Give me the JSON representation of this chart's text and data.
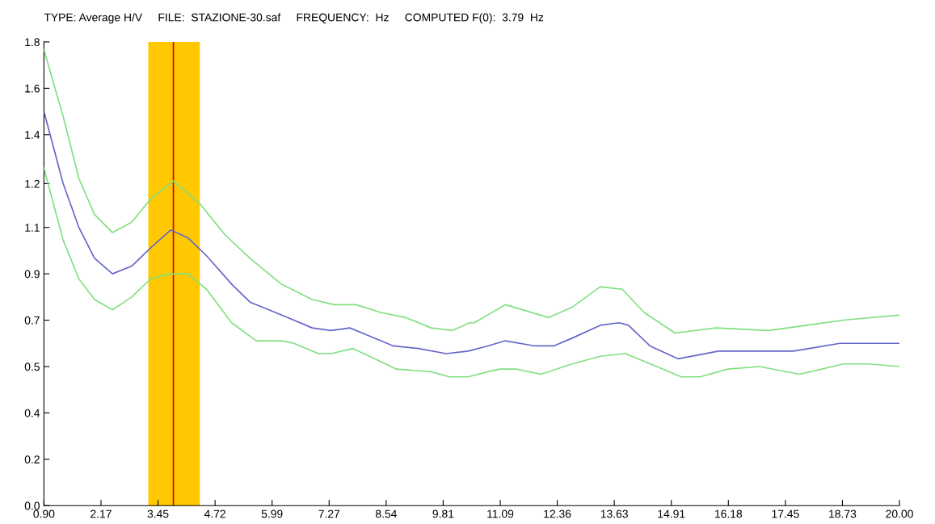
{
  "chart_data": {
    "type": "line",
    "title": "TYPE: Average H/V     FILE:  STAZIONE-30.saf     FREQUENCY:  Hz     COMPUTED F(0):  3.79  Hz",
    "series": [
      {
        "color": "#80e080",
        "x": [
          0.9,
          1.33,
          1.68,
          2.03,
          2.43,
          2.86,
          3.28,
          3.79,
          4.39,
          4.95,
          5.5,
          6.2,
          6.89,
          7.38,
          7.87,
          8.42,
          8.98,
          9.54,
          10.02,
          10.4,
          10.51,
          11.2,
          12.17,
          12.69,
          13.32,
          13.81,
          14.3,
          14.99,
          15.9,
          17.08,
          18.75,
          20.0
        ],
        "values": [
          1.77,
          1.51,
          1.27,
          1.13,
          1.06,
          1.1,
          1.19,
          1.26,
          1.17,
          1.05,
          0.96,
          0.86,
          0.8,
          0.78,
          0.78,
          0.75,
          0.73,
          0.69,
          0.68,
          0.71,
          0.71,
          0.78,
          0.73,
          0.77,
          0.85,
          0.84,
          0.75,
          0.67,
          0.69,
          0.68,
          0.72,
          0.74
        ]
      },
      {
        "color": "#6666cc",
        "x": [
          0.9,
          1.33,
          1.68,
          2.03,
          2.43,
          2.86,
          3.28,
          3.73,
          4.11,
          4.53,
          5.09,
          5.5,
          5.78,
          6.34,
          6.89,
          7.31,
          7.73,
          8.15,
          8.7,
          9.26,
          9.88,
          10.37,
          10.81,
          11.2,
          11.86,
          12.28,
          12.69,
          13.32,
          13.74,
          13.95,
          14.43,
          15.06,
          15.96,
          17.63,
          18.67,
          19.36,
          20.0
        ],
        "values": [
          1.53,
          1.25,
          1.08,
          0.96,
          0.9,
          0.93,
          1.0,
          1.07,
          1.04,
          0.97,
          0.86,
          0.79,
          0.77,
          0.73,
          0.69,
          0.68,
          0.69,
          0.66,
          0.62,
          0.61,
          0.59,
          0.6,
          0.62,
          0.64,
          0.62,
          0.62,
          0.65,
          0.7,
          0.71,
          0.7,
          0.62,
          0.57,
          0.6,
          0.6,
          0.63,
          0.63,
          0.63
        ]
      },
      {
        "color": "#80e080",
        "x": [
          0.9,
          1.33,
          1.68,
          2.03,
          2.43,
          2.86,
          3.28,
          3.7,
          4.11,
          4.53,
          5.09,
          5.64,
          6.2,
          6.48,
          7.03,
          7.31,
          7.8,
          8.29,
          8.77,
          9.54,
          9.95,
          10.37,
          10.81,
          11.09,
          11.44,
          12.0,
          12.69,
          13.32,
          13.88,
          14.3,
          15.13,
          15.55,
          16.17,
          16.87,
          17.77,
          18.75,
          19.3,
          20.0
        ],
        "values": [
          1.31,
          1.03,
          0.88,
          0.8,
          0.76,
          0.81,
          0.88,
          0.9,
          0.9,
          0.84,
          0.71,
          0.64,
          0.64,
          0.63,
          0.59,
          0.59,
          0.61,
          0.57,
          0.53,
          0.52,
          0.5,
          0.5,
          0.52,
          0.53,
          0.53,
          0.51,
          0.55,
          0.58,
          0.59,
          0.56,
          0.5,
          0.5,
          0.53,
          0.54,
          0.51,
          0.55,
          0.55,
          0.54
        ]
      }
    ],
    "xlim": [
      0.9,
      20.0
    ],
    "xticks": [
      {
        "value": 0.9,
        "label": "0.90"
      },
      {
        "value": 2.1733,
        "label": "2.17"
      },
      {
        "value": 3.4467,
        "label": "3.45"
      },
      {
        "value": 4.72,
        "label": "4.72"
      },
      {
        "value": 5.9933,
        "label": "5.99"
      },
      {
        "value": 7.2667,
        "label": "7.27"
      },
      {
        "value": 8.54,
        "label": "8.54"
      },
      {
        "value": 9.8133,
        "label": "9.81"
      },
      {
        "value": 11.0867,
        "label": "11.09"
      },
      {
        "value": 12.36,
        "label": "12.36"
      },
      {
        "value": 13.6333,
        "label": "13.63"
      },
      {
        "value": 14.9067,
        "label": "14.91"
      },
      {
        "value": 16.18,
        "label": "16.18"
      },
      {
        "value": 17.4533,
        "label": "17.45"
      },
      {
        "value": 18.7267,
        "label": "18.73"
      },
      {
        "value": 20.0,
        "label": "20.00"
      }
    ],
    "ylim": [
      0.0,
      1.8
    ],
    "yticks": [
      {
        "value": 0.0,
        "label": "0.0"
      },
      {
        "value": 0.18,
        "label": "0.2"
      },
      {
        "value": 0.36,
        "label": "0.4"
      },
      {
        "value": 0.54,
        "label": "0.5"
      },
      {
        "value": 0.72,
        "label": "0.7"
      },
      {
        "value": 0.9,
        "label": "0.9"
      },
      {
        "value": 1.08,
        "label": "1.1"
      },
      {
        "value": 1.25,
        "label": "1.2"
      },
      {
        "value": 1.44,
        "label": "1.4"
      },
      {
        "value": 1.62,
        "label": "1.6"
      },
      {
        "value": 1.8,
        "label": "1.8"
      }
    ],
    "bands": [
      {
        "axis": "x",
        "from": 3.23,
        "to": 4.38,
        "color": "#ffc800"
      }
    ],
    "ref_lines": [
      {
        "axis": "x",
        "value": 3.79,
        "color": "#cc0000"
      }
    ],
    "grid": false,
    "legend": false,
    "marker": "none",
    "line_style": "solid"
  }
}
